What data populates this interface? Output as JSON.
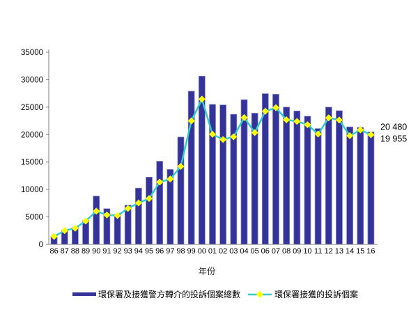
{
  "chart_data": {
    "type": "combo",
    "title": "",
    "xlabel": "年份",
    "ylabel": "",
    "ylim": [
      0,
      35000
    ],
    "ytick_step": 5000,
    "grid": false,
    "legend_position": "bottom",
    "categories": [
      "86",
      "87",
      "88",
      "89",
      "90",
      "91",
      "92",
      "93",
      "94",
      "95",
      "96",
      "97",
      "98",
      "99",
      "00",
      "01",
      "02",
      "03",
      "04",
      "05",
      "06",
      "07",
      "08",
      "09",
      "10",
      "11",
      "12",
      "13",
      "14",
      "15",
      "16"
    ],
    "series": [
      {
        "name": "環保署及接獲警方轉介的投訴個案總數",
        "type": "bar",
        "color": "#333399",
        "edge_color": "#8888C8",
        "values": [
          1550,
          2600,
          3100,
          4400,
          8800,
          6500,
          5450,
          7150,
          10250,
          12250,
          15150,
          13650,
          19550,
          27900,
          30650,
          25500,
          25400,
          23700,
          26350,
          23900,
          27450,
          27350,
          25000,
          24300,
          23350,
          21100,
          25000,
          24350,
          21400,
          21300,
          20480
        ]
      },
      {
        "name": "環保署接獲的投訴個案",
        "type": "line",
        "color": "#33CCCC",
        "marker": "diamond",
        "marker_color": "#FFFF00",
        "values": [
          1450,
          2500,
          2950,
          4250,
          6050,
          5350,
          5250,
          6550,
          7550,
          8350,
          11350,
          11900,
          14200,
          22500,
          26450,
          20050,
          19100,
          19600,
          23100,
          20350,
          24250,
          24900,
          22700,
          22400,
          21800,
          20100,
          23050,
          22650,
          19800,
          20850,
          19955
        ]
      }
    ],
    "annotations": [
      {
        "text": "20 480",
        "series": 0,
        "category": "16",
        "value": 20480
      },
      {
        "text": "19 955",
        "series": 1,
        "category": "16",
        "value": 19955
      }
    ],
    "axis_color": "#808080"
  }
}
